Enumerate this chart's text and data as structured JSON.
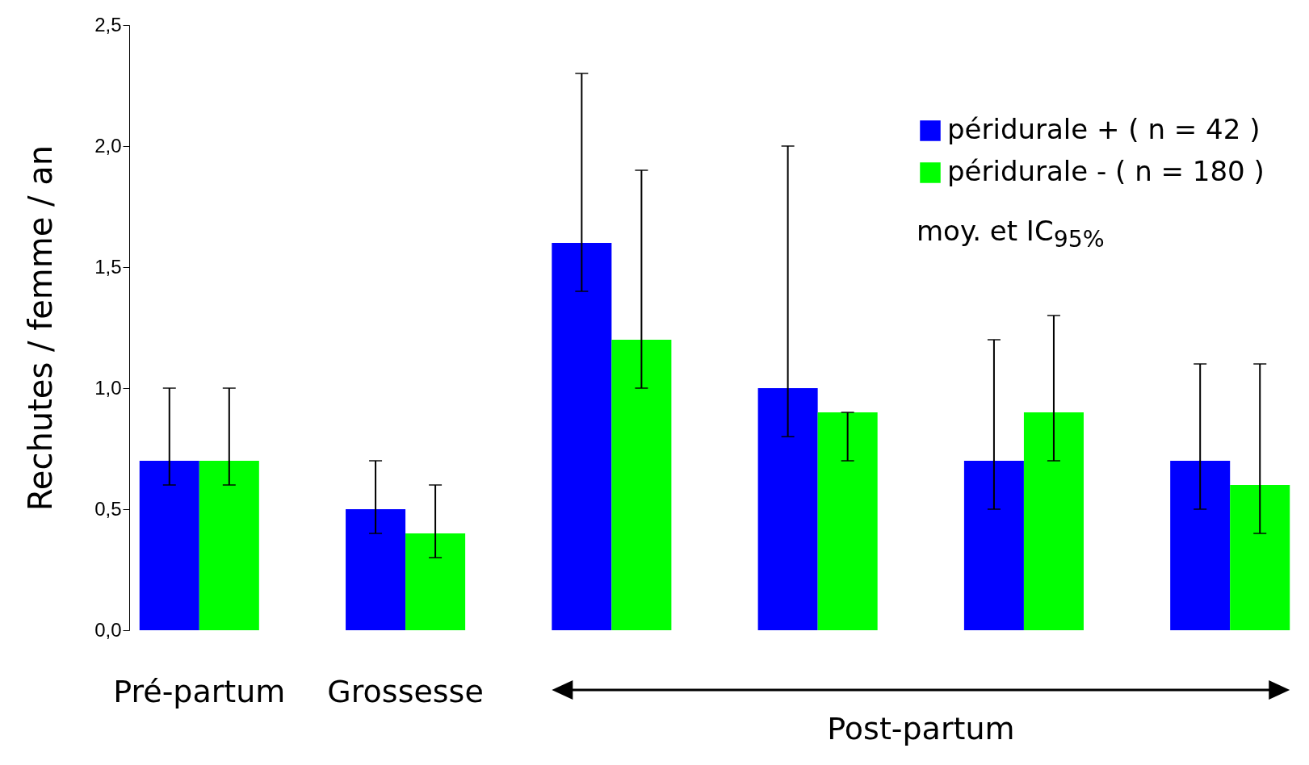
{
  "chart_data": {
    "type": "bar",
    "ylabel": "Rechutes / femme / an",
    "categories": [
      "Pré-partum",
      "Grossesse",
      null,
      null,
      null,
      null
    ],
    "series": [
      {
        "name": "péridurale + ( n = 42 )",
        "color": "#0000ff",
        "values": [
          0.7,
          0.5,
          1.6,
          1.0,
          0.7,
          0.7
        ],
        "errors": [
          [
            0.6,
            1.0
          ],
          [
            0.4,
            0.7
          ],
          [
            1.4,
            2.3
          ],
          [
            0.8,
            2.0
          ],
          [
            0.5,
            1.2
          ],
          [
            0.5,
            1.1
          ]
        ]
      },
      {
        "name": "péridurale - ( n = 180 )",
        "color": "#00ff00",
        "values": [
          0.7,
          0.4,
          1.2,
          0.9,
          0.9,
          0.6
        ],
        "errors": [
          [
            0.6,
            1.0
          ],
          [
            0.3,
            0.6
          ],
          [
            1.0,
            1.9
          ],
          [
            0.7,
            0.9
          ],
          [
            0.7,
            1.3
          ],
          [
            0.4,
            1.1
          ]
        ]
      }
    ],
    "ylim": [
      0,
      2.5
    ],
    "yticks": [
      {
        "value": 0,
        "label": "0,0"
      },
      {
        "value": 0.5,
        "label": "0,5"
      },
      {
        "value": 1,
        "label": "1,0"
      },
      {
        "value": 1.5,
        "label": "1,5"
      },
      {
        "value": 2,
        "label": "2,0"
      },
      {
        "value": 2.5,
        "label": "2,5"
      }
    ],
    "grid": false,
    "legend": "top right",
    "annotations": [
      "moy. et IC$_{95%}$",
      "Post-partum"
    ]
  }
}
